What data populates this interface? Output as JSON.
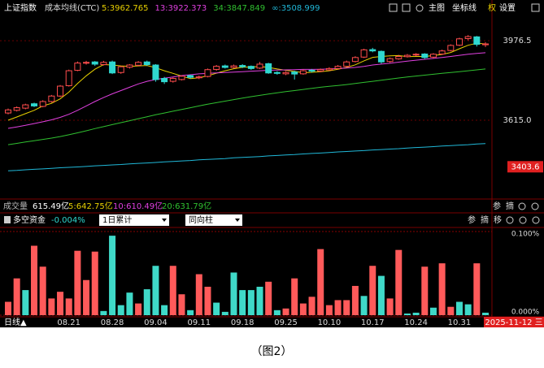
{
  "chart_data": [
    {
      "type": "candlestick",
      "title": "上证指数",
      "subtitle": "成本均线(CTC)",
      "categories": [
        null,
        null,
        null,
        null,
        null,
        null,
        null,
        "08.21",
        null,
        null,
        null,
        null,
        "08.28",
        null,
        null,
        null,
        null,
        "09.04",
        null,
        null,
        null,
        null,
        "09.11",
        null,
        null,
        null,
        null,
        "09.18",
        null,
        null,
        null,
        null,
        "09.25",
        null,
        null,
        null,
        null,
        "10.10",
        null,
        null,
        null,
        null,
        "10.17",
        null,
        null,
        null,
        null,
        "10.24",
        null,
        null,
        null,
        null,
        "10.31",
        null,
        null,
        null
      ],
      "candles": [
        [
          3648,
          3668,
          3642,
          3662
        ],
        [
          3660,
          3678,
          3655,
          3672
        ],
        [
          3670,
          3690,
          3665,
          3685
        ],
        [
          3690,
          3695,
          3675,
          3680
        ],
        [
          3678,
          3706,
          3674,
          3700
        ],
        [
          3700,
          3730,
          3695,
          3725
        ],
        [
          3725,
          3775,
          3720,
          3770
        ],
        [
          3772,
          3845,
          3768,
          3840
        ],
        [
          3842,
          3882,
          3838,
          3875
        ],
        [
          3876,
          3885,
          3868,
          3878
        ],
        [
          3880,
          3884,
          3862,
          3870
        ],
        [
          3868,
          3885,
          3864,
          3878
        ],
        [
          3880,
          3886,
          3825,
          3830
        ],
        [
          3832,
          3862,
          3826,
          3858
        ],
        [
          3856,
          3870,
          3850,
          3866
        ],
        [
          3865,
          3884,
          3860,
          3878
        ],
        [
          3880,
          3886,
          3862,
          3868
        ],
        [
          3866,
          3870,
          3790,
          3800
        ],
        [
          3805,
          3812,
          3780,
          3790
        ],
        [
          3792,
          3810,
          3786,
          3805
        ],
        [
          3800,
          3820,
          3796,
          3815
        ],
        [
          3818,
          3822,
          3804,
          3810
        ],
        [
          3808,
          3818,
          3802,
          3812
        ],
        [
          3814,
          3850,
          3810,
          3845
        ],
        [
          3846,
          3866,
          3840,
          3860
        ],
        [
          3862,
          3868,
          3850,
          3855
        ],
        [
          3855,
          3868,
          3850,
          3862
        ],
        [
          3864,
          3870,
          3852,
          3858
        ],
        [
          3860,
          3864,
          3844,
          3850
        ],
        [
          3852,
          3880,
          3848,
          3870
        ],
        [
          3872,
          3876,
          3826,
          3830
        ],
        [
          3832,
          3838,
          3822,
          3828
        ],
        [
          3826,
          3838,
          3820,
          3832
        ],
        [
          3834,
          3840,
          3800,
          3825
        ],
        [
          3826,
          3846,
          3822,
          3840
        ],
        [
          3842,
          3848,
          3832,
          3838
        ],
        [
          3838,
          3850,
          3834,
          3845
        ],
        [
          3844,
          3856,
          3840,
          3850
        ],
        [
          3850,
          3866,
          3846,
          3860
        ],
        [
          3860,
          3886,
          3856,
          3880
        ],
        [
          3882,
          3906,
          3878,
          3900
        ],
        [
          3902,
          3940,
          3898,
          3935
        ],
        [
          3936,
          3944,
          3924,
          3930
        ],
        [
          3928,
          3932,
          3872,
          3880
        ],
        [
          3882,
          3900,
          3876,
          3895
        ],
        [
          3894,
          3912,
          3890,
          3905
        ],
        [
          3904,
          3916,
          3900,
          3910
        ],
        [
          3912,
          3920,
          3906,
          3915
        ],
        [
          3916,
          3920,
          3894,
          3900
        ],
        [
          3902,
          3920,
          3896,
          3915
        ],
        [
          3916,
          3936,
          3912,
          3930
        ],
        [
          3932,
          3960,
          3928,
          3955
        ],
        [
          3956,
          3990,
          3952,
          3985
        ],
        [
          3986,
          4002,
          3978,
          3995
        ],
        [
          3994,
          3998,
          3950,
          3960
        ],
        [
          3958,
          3970,
          3948,
          3962
        ]
      ],
      "up_color": "#ff4d4d",
      "down_color": "#2fd8d0",
      "series": [
        {
          "name": "5:3962.765",
          "color": "#e8d000",
          "values": [
            3615,
            3630,
            3645,
            3660,
            3680,
            3692,
            3712,
            3743,
            3782,
            3817,
            3847,
            3868,
            3866,
            3862,
            3860,
            3862,
            3864,
            3854,
            3840,
            3828,
            3816,
            3804,
            3808,
            3817,
            3829,
            3840,
            3849,
            3856,
            3857,
            3859,
            3855,
            3848,
            3842,
            3837,
            3831,
            3833,
            3836,
            3840,
            3847,
            3855,
            3867,
            3885,
            3901,
            3905,
            3908,
            3909,
            3904,
            3905,
            3905,
            3909,
            3914,
            3923,
            3940,
            3956,
            3965,
            3962
          ]
        },
        {
          "name": "13:3922.373",
          "color": "#e040e0",
          "values": [
            3578,
            3585,
            3592,
            3600,
            3608,
            3617,
            3628,
            3642,
            3660,
            3680,
            3700,
            3718,
            3735,
            3750,
            3765,
            3780,
            3792,
            3800,
            3806,
            3812,
            3818,
            3822,
            3826,
            3828,
            3830,
            3832,
            3834,
            3836,
            3838,
            3840,
            3842,
            3843,
            3844,
            3845,
            3846,
            3846,
            3847,
            3848,
            3850,
            3852,
            3855,
            3860,
            3866,
            3870,
            3874,
            3879,
            3884,
            3888,
            3892,
            3896,
            3900,
            3905,
            3910,
            3915,
            3919,
            3922
          ]
        },
        {
          "name": "34:3847.849",
          "color": "#30c030",
          "values": [
            3504,
            3510,
            3516,
            3522,
            3528,
            3534,
            3541,
            3549,
            3558,
            3567,
            3577,
            3586,
            3595,
            3604,
            3613,
            3622,
            3631,
            3640,
            3648,
            3656,
            3664,
            3672,
            3680,
            3688,
            3695,
            3702,
            3709,
            3716,
            3722,
            3728,
            3734,
            3740,
            3745,
            3750,
            3755,
            3760,
            3765,
            3769,
            3773,
            3777,
            3782,
            3787,
            3792,
            3797,
            3802,
            3807,
            3812,
            3816,
            3820,
            3824,
            3828,
            3832,
            3836,
            3840,
            3844,
            3848
          ]
        },
        {
          "name": "∞:3508.999",
          "color": "#20b8d8",
          "values": [
            3385,
            3387,
            3390,
            3392,
            3394,
            3396,
            3399,
            3401,
            3403,
            3405,
            3408,
            3410,
            3412,
            3414,
            3417,
            3419,
            3421,
            3423,
            3426,
            3428,
            3430,
            3432,
            3435,
            3437,
            3439,
            3441,
            3444,
            3446,
            3448,
            3450,
            3453,
            3455,
            3457,
            3459,
            3462,
            3464,
            3466,
            3468,
            3471,
            3473,
            3475,
            3477,
            3480,
            3482,
            3484,
            3486,
            3489,
            3491,
            3493,
            3495,
            3498,
            3500,
            3502,
            3504,
            3507,
            3509
          ]
        }
      ],
      "ylim": [
        3257,
        4095
      ],
      "yticks": [
        3976.5,
        {
          "value": 3615,
          "label": "3615.0"
        }
      ],
      "grid": true,
      "marker": {
        "value": 3403.6,
        "color": "#e02020"
      },
      "tools": [
        "主图",
        "坐标线",
        "权",
        "设置"
      ]
    },
    {
      "type": "bar",
      "title": "多空资金",
      "value_label": "-0.004%",
      "selectors": [
        "1日累计",
        "同向柱"
      ],
      "tools": [
        "参",
        "摘",
        "移"
      ],
      "values": [
        0.016,
        0.044,
        0.03,
        0.083,
        0.058,
        0.02,
        0.028,
        0.02,
        0.077,
        0.042,
        0.076,
        0.005,
        0.095,
        0.012,
        0.027,
        0.014,
        0.031,
        0.059,
        0.012,
        0.059,
        0.025,
        0.006,
        0.049,
        0.034,
        0.015,
        0.004,
        0.051,
        0.03,
        0.03,
        0.034,
        0.04,
        0.006,
        0.008,
        0.044,
        0.014,
        0.022,
        0.079,
        0.012,
        0.018,
        0.018,
        0.035,
        0.023,
        0.059,
        0.047,
        0.02,
        0.078,
        0.002,
        0.003,
        0.058,
        0.009,
        0.062,
        0.01,
        0.016,
        0.013,
        0.062,
        0.003
      ],
      "colors": [
        "#ff5a5a",
        "#ff5a5a",
        "#3fd9c8",
        "#ff5a5a",
        "#ff5a5a",
        "#ff5a5a",
        "#ff5a5a",
        "#ff5a5a",
        "#ff5a5a",
        "#ff5a5a",
        "#ff5a5a",
        "#3fd9c8",
        "#3fd9c8",
        "#3fd9c8",
        "#3fd9c8",
        "#ff5a5a",
        "#3fd9c8",
        "#3fd9c8",
        "#3fd9c8",
        "#ff5a5a",
        "#ff5a5a",
        "#3fd9c8",
        "#ff5a5a",
        "#ff5a5a",
        "#3fd9c8",
        "#3fd9c8",
        "#3fd9c8",
        "#3fd9c8",
        "#3fd9c8",
        "#3fd9c8",
        "#ff5a5a",
        "#3fd9c8",
        "#ff5a5a",
        "#ff5a5a",
        "#ff5a5a",
        "#ff5a5a",
        "#ff5a5a",
        "#ff5a5a",
        "#ff5a5a",
        "#ff5a5a",
        "#ff5a5a",
        "#3fd9c8",
        "#ff5a5a",
        "#3fd9c8",
        "#ff5a5a",
        "#ff5a5a",
        "#3fd9c8",
        "#3fd9c8",
        "#ff5a5a",
        "#3fd9c8",
        "#ff5a5a",
        "#ff5a5a",
        "#3fd9c8",
        "#3fd9c8",
        "#ff5a5a",
        "#3fd9c8"
      ],
      "ylim": [
        0,
        0.1
      ],
      "yticks": [
        {
          "value": 0.1,
          "label": "0.100%"
        },
        {
          "value": 0,
          "label": "0.000%"
        }
      ]
    }
  ],
  "volume_bar": {
    "label": "成交量",
    "value": "615.49亿",
    "averages": [
      "5:642.75亿",
      "10:610.49亿",
      "20:631.79亿"
    ],
    "tools": [
      "参",
      "摘"
    ]
  },
  "footer": {
    "period": "日线▲",
    "date": "2025-11-12 三"
  },
  "caption": "（图2）"
}
